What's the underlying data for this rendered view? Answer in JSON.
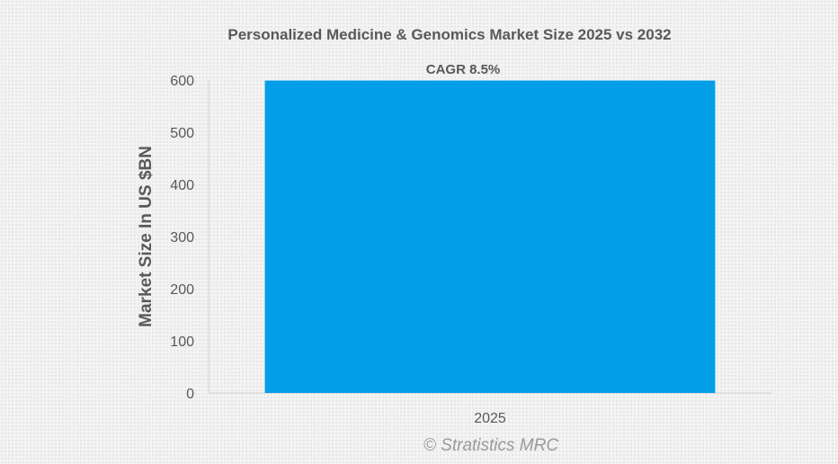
{
  "chart_data": {
    "type": "bar",
    "title": "Personalized Medicine & Genomics Market Size 2025 vs 2032",
    "categories": [
      "2025"
    ],
    "values": [
      599
    ],
    "xlabel": "",
    "ylabel": "Market Size In US $BN",
    "ylim": [
      0,
      600
    ],
    "yticks": [
      0,
      100,
      200,
      300,
      400,
      500,
      600
    ],
    "grid": false,
    "annotation": "CAGR 8.5%",
    "bar_color": "#029fe8",
    "watermark": "© Stratistics MRC"
  }
}
